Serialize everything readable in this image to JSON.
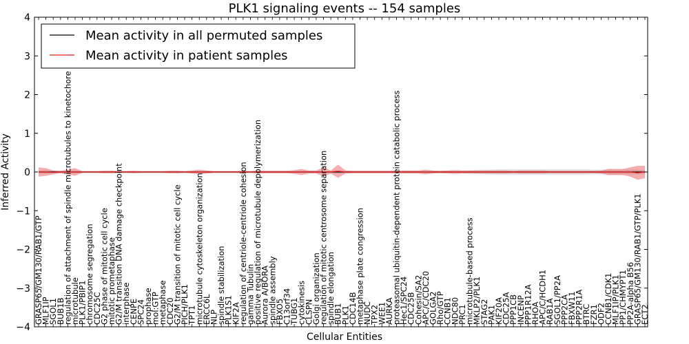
{
  "chart_data": {
    "type": "line",
    "title": "PLK1 signaling events -- 154 samples",
    "xlabel": "Cellular Entities",
    "ylabel": "Inferred Activity",
    "ylim": [
      -4,
      4
    ],
    "yticks": [
      -4,
      -3,
      -2,
      -1,
      0,
      1,
      2,
      3,
      4
    ],
    "ytick_labels": [
      "−4",
      "−3",
      "−2",
      "−1",
      "0",
      "1",
      "2",
      "3",
      "4"
    ],
    "legend": {
      "placement": "top-left",
      "entries": [
        {
          "label": "Mean activity in all permuted samples",
          "color": "#000000"
        },
        {
          "label": "Mean activity in patient samples",
          "color": "#e31a1c"
        }
      ]
    },
    "categories": [
      "GRASP65/GM130/RAB1/GTP",
      "MLF1IP",
      "SGOL1",
      "BUB1B",
      "regulation of attachment of spindle microtubules to kinetochore",
      "microtubule",
      "PLK1/PBIP1",
      "chromosome segregation",
      "CDC25C",
      "G2 phase of mitotic cell cycle",
      "mitotic prometaphase",
      "G2/M transition DNA damage checkpoint",
      "interphase",
      "CENPE",
      "SPC24",
      "prophase",
      "mol:GTP",
      "metaphase",
      "CDC20",
      "G2/M transition of mitotic cell cycle",
      "PICH/PLK1",
      "TPT1",
      "microtubule cytoskeleton organization",
      "ERCC6L",
      "NLP",
      "spindle stabilization",
      "PLK1S1",
      "KIF2A",
      "regulation of centriole-centriole cohesion",
      "gamma Tubulin",
      "positive regulation of microtubule depolymerization",
      "Aurora A/BORA",
      "spindle assembly",
      "FBXO5",
      "C13orf34",
      "TUBG1",
      "cytokinesis",
      "CLSPN",
      "Golgi organization",
      "regulation of mitotic centrosome separation",
      "spindle elongation",
      "BUB1",
      "PLK1",
      "CDC14B",
      "metaphase plate congression",
      "NUDC",
      "TPX2",
      "WEE1",
      "AURKA",
      "proteasomal ubiquitin-dependent protein catabolic process",
      "Hec1/SPC24",
      "CDC25B",
      "Cohesin/SA2",
      "APC/C/CDC20",
      "GOLGA2",
      "Rho/GTP",
      "CCNB1",
      "NDC80",
      "PRC1",
      "microtubule-based process",
      "MKLP2/PLK1",
      "STAG2",
      "PAK1",
      "KIF20A",
      "CDC25A",
      "PPP1CB",
      "INCENP",
      "PPP1R12A",
      "RHOA",
      "APC/C/HCDH1",
      "RAB1A",
      "SGOL1/PP2A",
      "PPP2CA",
      "FBXW11",
      "PPP2R1A",
      "BTRC",
      "FZR1",
      "ODF2",
      "CCNB1/CDK1",
      "MLF1IP/PLK1",
      "PP1/CHMYPT1",
      "PP2A-alpha B56",
      "GRASP65/GM130/RAB1/GTP/PLK1",
      "ECT2"
    ],
    "series": [
      {
        "name": "Mean activity in all permuted samples",
        "color": "#000000",
        "values": [
          0,
          0,
          0,
          0,
          0,
          0,
          0,
          0,
          0,
          0,
          0,
          0,
          0,
          0,
          0,
          0,
          0,
          0,
          0,
          0,
          0,
          0,
          0,
          0,
          0,
          0,
          0,
          0,
          0,
          0,
          0,
          0,
          0,
          0,
          0,
          0,
          0,
          0,
          0,
          0,
          0,
          0,
          0,
          0,
          0,
          0,
          0,
          0,
          0,
          0,
          0,
          0,
          0,
          0,
          0,
          0,
          0,
          0,
          0,
          0,
          0,
          0,
          0,
          0,
          0,
          0,
          0,
          0,
          0,
          0,
          0,
          0,
          0,
          0,
          0,
          0,
          0,
          0,
          0,
          0,
          0,
          0,
          0,
          0
        ],
        "band": [
          0.04,
          0.05,
          0.04,
          0.03,
          0.04,
          0.04,
          0.03,
          0.03,
          0.03,
          0.03,
          0.03,
          0.03,
          0.03,
          0.03,
          0.03,
          0.03,
          0.03,
          0.03,
          0.03,
          0.03,
          0.03,
          0.03,
          0.03,
          0.03,
          0.03,
          0.03,
          0.03,
          0.03,
          0.03,
          0.03,
          0.03,
          0.03,
          0.03,
          0.03,
          0.03,
          0.03,
          0.03,
          0.03,
          0.03,
          0.03,
          0.03,
          0.03,
          0.04,
          0.03,
          0.03,
          0.03,
          0.03,
          0.03,
          0.03,
          0.03,
          0.03,
          0.03,
          0.03,
          0.03,
          0.03,
          0.03,
          0.03,
          0.03,
          0.03,
          0.04,
          0.05,
          0.06,
          0.06,
          0.07,
          0.07,
          0.07,
          0.07,
          0.07,
          0.07,
          0.07,
          0.07,
          0.07,
          0.07,
          0.07,
          0.07,
          0.07,
          0.06,
          0.06,
          0.06,
          0.06,
          0.06,
          0.06,
          0.06,
          0.05
        ]
      },
      {
        "name": "Mean activity in patient samples",
        "color": "#e31a1c",
        "values": [
          0,
          0,
          -0.01,
          0,
          0,
          0,
          0,
          0,
          0,
          0,
          0,
          0,
          0,
          0,
          0,
          0,
          0,
          0,
          0,
          0,
          0,
          0,
          0,
          0,
          0,
          0,
          0,
          0,
          0,
          0,
          0,
          0,
          0,
          0,
          0,
          0,
          0,
          0,
          0,
          0,
          0,
          0.02,
          0,
          0,
          0,
          0,
          0,
          0,
          0,
          0,
          0,
          0,
          0,
          0,
          0,
          0,
          0,
          0,
          0,
          0,
          0,
          0,
          0,
          0,
          0,
          0,
          0,
          0,
          0,
          0,
          0,
          0,
          0,
          0,
          0,
          0,
          0,
          0,
          0,
          0,
          0,
          0,
          -0.02,
          0
        ],
        "band": [
          0.12,
          0.1,
          0.05,
          0.03,
          0.06,
          0.1,
          0.02,
          0.02,
          0.02,
          0.03,
          0.03,
          0.02,
          0.02,
          0.03,
          0.02,
          0.02,
          0.02,
          0.02,
          0.03,
          0.03,
          0.02,
          0.04,
          0.06,
          0.04,
          0.02,
          0.02,
          0.02,
          0.02,
          0.03,
          0.02,
          0.04,
          0.03,
          0.03,
          0.03,
          0.03,
          0.05,
          0.08,
          0.04,
          0.04,
          0.12,
          0.04,
          0.17,
          0.04,
          0.03,
          0.03,
          0.03,
          0.03,
          0.03,
          0.03,
          0.03,
          0.04,
          0.04,
          0.04,
          0.06,
          0.04,
          0.03,
          0.04,
          0.05,
          0.04,
          0.04,
          0.04,
          0.04,
          0.04,
          0.04,
          0.04,
          0.03,
          0.04,
          0.04,
          0.04,
          0.04,
          0.03,
          0.03,
          0.03,
          0.03,
          0.03,
          0.03,
          0.03,
          0.04,
          0.08,
          0.08,
          0.08,
          0.12,
          0.18,
          0.16
        ]
      }
    ]
  }
}
